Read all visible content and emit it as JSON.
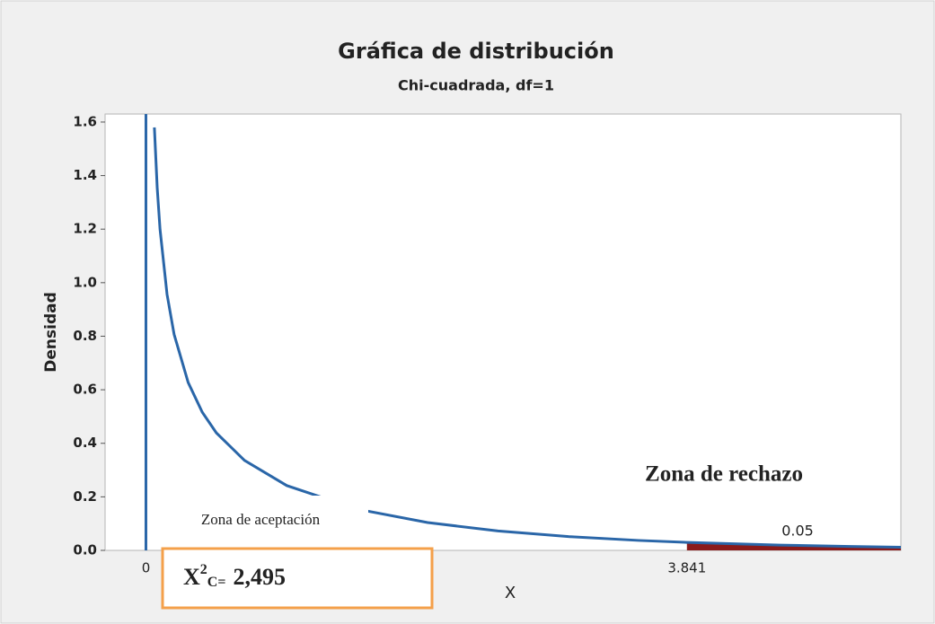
{
  "chart_data": {
    "type": "line",
    "title": "Gráfica de distribución",
    "subtitle": "Chi-cuadrada, df=1",
    "xlabel": "X",
    "ylabel": "Densidad",
    "x": [
      0.06,
      0.08,
      0.1,
      0.15,
      0.2,
      0.3,
      0.4,
      0.5,
      0.7,
      1,
      1.5,
      2,
      2.5,
      3,
      3.5,
      3.841,
      4.5,
      5,
      5.36
    ],
    "values": [
      1.58,
      1.355,
      1.2,
      0.956,
      0.807,
      0.627,
      0.516,
      0.439,
      0.336,
      0.242,
      0.154,
      0.104,
      0.0724,
      0.0514,
      0.0371,
      0.0298,
      0.0198,
      0.0146,
      0.0118
    ],
    "color": "#2a66a8",
    "shade_color": "#8b1a1a",
    "alpha": 0.05,
    "xlim": [
      -0.29,
      5.36
    ],
    "ylim": [
      0,
      1.63
    ],
    "xticks": [
      0,
      3.841
    ],
    "yticks": [
      {
        "value": 0,
        "label": "0.0"
      },
      {
        "value": 0.2,
        "label": "0.2"
      },
      {
        "value": 0.4,
        "label": "0.4"
      },
      {
        "value": 0.6,
        "label": "0.6"
      },
      {
        "value": 0.8,
        "label": "0.8"
      },
      {
        "value": 1.0,
        "label": "1.0"
      },
      {
        "value": 1.2,
        "label": "1.2"
      },
      {
        "value": 1.4,
        "label": "1.4"
      },
      {
        "value": 1.6,
        "label": "1.6"
      }
    ],
    "annotations": {
      "rejection": "Zona de rechazo",
      "acceptance": "Zona de aceptación"
    },
    "statistic": {
      "symbol": "X",
      "sup": "2",
      "sub": "C=",
      "value": "2,495"
    }
  }
}
